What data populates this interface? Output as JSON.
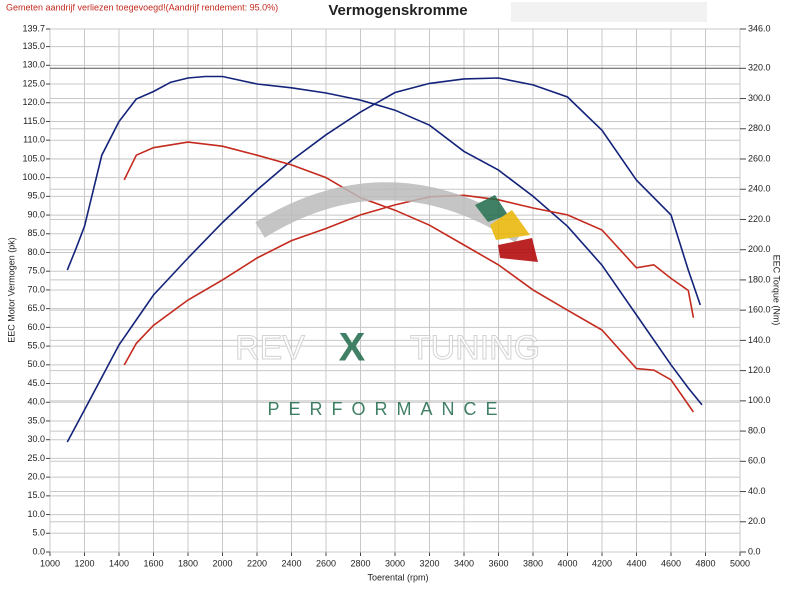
{
  "chart_data": {
    "type": "line",
    "note": "Gemeten aandrijf verliezen toegevoegd!(Aandrijf rendement: 95.0%)",
    "title": "Vermogenskromme",
    "xlabel": "Toerental (rpm)",
    "ylabel": "EEC Motor Vermogen (pk)",
    "y2label": "EEC Torque (Nm)",
    "grid": true,
    "xlim": [
      1000,
      5000
    ],
    "xticks": [
      1000,
      1200,
      1400,
      1600,
      1800,
      2000,
      2200,
      2400,
      2600,
      2800,
      3000,
      3200,
      3400,
      3600,
      3800,
      4000,
      4200,
      4400,
      4600,
      4800,
      5000
    ],
    "ylim": [
      0,
      139.7
    ],
    "yticks": [
      {
        "value": 0,
        "label": "0.0"
      },
      {
        "value": 5,
        "label": "5.0"
      },
      {
        "value": 10,
        "label": "10.0"
      },
      {
        "value": 15,
        "label": "15.0"
      },
      {
        "value": 20,
        "label": "20.0"
      },
      {
        "value": 25,
        "label": "25.0"
      },
      {
        "value": 30,
        "label": "30.0"
      },
      {
        "value": 35,
        "label": "35.0"
      },
      {
        "value": 40,
        "label": "40.0"
      },
      {
        "value": 45,
        "label": "45.0"
      },
      {
        "value": 50,
        "label": "50.0"
      },
      {
        "value": 55,
        "label": "55.0"
      },
      {
        "value": 60,
        "label": "60.0"
      },
      {
        "value": 65,
        "label": "65.0"
      },
      {
        "value": 70,
        "label": "70.0"
      },
      {
        "value": 75,
        "label": "75.0"
      },
      {
        "value": 80,
        "label": "80.0"
      },
      {
        "value": 85,
        "label": "85.0"
      },
      {
        "value": 90,
        "label": "90.0"
      },
      {
        "value": 95,
        "label": "95.0"
      },
      {
        "value": 100,
        "label": "100.0"
      },
      {
        "value": 105,
        "label": "105.0"
      },
      {
        "value": 110,
        "label": "110.0"
      },
      {
        "value": 115,
        "label": "115.0"
      },
      {
        "value": 120,
        "label": "120.0"
      },
      {
        "value": 125,
        "label": "125.0"
      },
      {
        "value": 130,
        "label": "130.0"
      },
      {
        "value": 135,
        "label": "135.0"
      },
      139.7
    ],
    "y2lim": [
      0,
      346
    ],
    "y2ticks": [
      {
        "value": 0,
        "label": "0.0"
      },
      {
        "value": 20,
        "label": "20.0"
      },
      {
        "value": 40,
        "label": "40.0"
      },
      {
        "value": 60,
        "label": "60.0"
      },
      {
        "value": 80,
        "label": "80.0"
      },
      {
        "value": 100,
        "label": "100.0"
      },
      {
        "value": 120,
        "label": "120.0"
      },
      {
        "value": 140,
        "label": "140.0"
      },
      {
        "value": 160,
        "label": "160.0"
      },
      {
        "value": 180,
        "label": "180.0"
      },
      {
        "value": 200,
        "label": "200.0"
      },
      {
        "value": 220,
        "label": "220.0"
      },
      {
        "value": 240,
        "label": "240.0"
      },
      {
        "value": 260,
        "label": "260.0"
      },
      {
        "value": 280,
        "label": "280.0"
      },
      {
        "value": 300,
        "label": "300.0"
      },
      {
        "value": 320,
        "label": "320.0"
      },
      {
        "value": 346,
        "label": "346.0"
      }
    ],
    "series": [
      {
        "color": "#14237a",
        "axis": "y",
        "x": [
          1100,
          1150,
          1200,
          1300,
          1400,
          1500,
          1600,
          1700,
          1800,
          1900,
          2000,
          2200,
          2400,
          2600,
          2800,
          3000,
          3200,
          3400,
          3600,
          3800,
          4000,
          4200,
          4400,
          4600,
          4700,
          4780
        ],
        "values": [
          75.3,
          81,
          87,
          106,
          115,
          121,
          123,
          125.5,
          126.6,
          127,
          127,
          125,
          124,
          122.6,
          120.7,
          118,
          114,
          107,
          102,
          95,
          87,
          76.6,
          63.3,
          50,
          43.8,
          39.3
        ]
      },
      {
        "color": "#14237a",
        "axis": "y2",
        "x": [
          1100,
          1200,
          1400,
          1600,
          1800,
          2000,
          2200,
          2400,
          2600,
          2800,
          3000,
          3200,
          3400,
          3600,
          3800,
          4000,
          4200,
          4400,
          4600,
          4700,
          4770
        ],
        "values": [
          72.8,
          94,
          137,
          170,
          194.5,
          218,
          239.5,
          259,
          276,
          291,
          304,
          310,
          313,
          313.6,
          309,
          301,
          279,
          246,
          223,
          186.5,
          163.4
        ]
      },
      {
        "color": "#c42a1e",
        "axis": "y",
        "x": [
          1430,
          1500,
          1600,
          1800,
          2000,
          2200,
          2400,
          2600,
          2800,
          3000,
          3200,
          3400,
          3600,
          3800,
          4000,
          4200,
          4400,
          4500,
          4600,
          4730
        ],
        "values": [
          99.4,
          106,
          108,
          109.5,
          108.4,
          106,
          103.4,
          100,
          94.6,
          91.3,
          87.3,
          82,
          76.7,
          70,
          64.6,
          59.3,
          49,
          48.6,
          46,
          37.4
        ]
      },
      {
        "color": "#c42a1e",
        "axis": "y2",
        "x": [
          1430,
          1500,
          1600,
          1800,
          2000,
          2200,
          2400,
          2600,
          2800,
          3000,
          3200,
          3400,
          3600,
          3800,
          4000,
          4200,
          4400,
          4500,
          4600,
          4700,
          4730
        ],
        "values": [
          123.7,
          138,
          150,
          166.7,
          180,
          194.5,
          206,
          214,
          223,
          229.6,
          235,
          236,
          233,
          227.6,
          223,
          213,
          188,
          190,
          181,
          173,
          155
        ]
      }
    ]
  },
  "logo": {
    "left": "REV",
    "mark": "X",
    "right": "TUNING",
    "tagline": "PERFORMANCE"
  }
}
